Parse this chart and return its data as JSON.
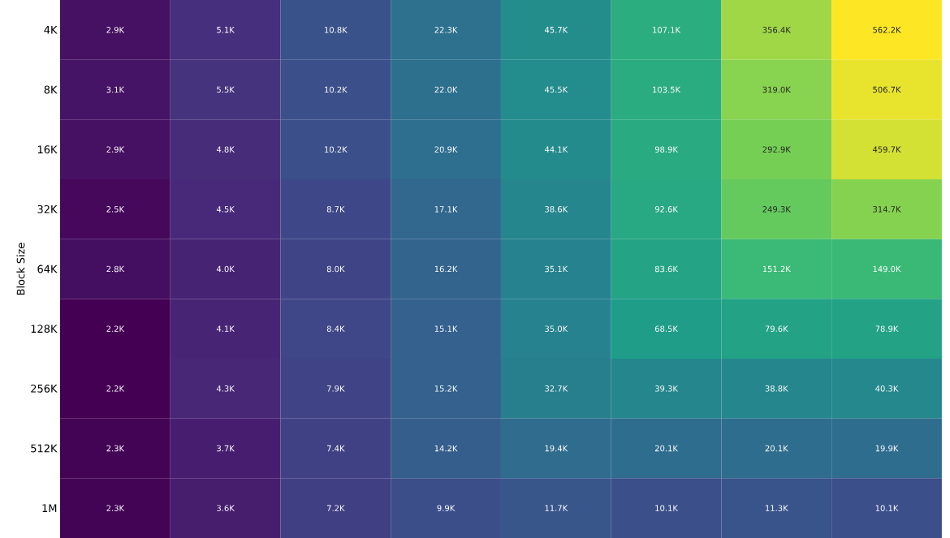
{
  "chart_data": {
    "type": "heatmap",
    "ylabel": "Block Size",
    "categories": [
      null,
      null,
      null,
      null,
      null,
      null,
      null,
      null
    ],
    "y_categories": [
      "4K",
      "8K",
      "16K",
      "32K",
      "64K",
      "128K",
      "256K",
      "512K",
      "1M"
    ],
    "cells": [
      [
        2900,
        5100,
        10800,
        22300,
        45700,
        107100,
        356400,
        562200
      ],
      [
        3100,
        5500,
        10200,
        22000,
        45500,
        103500,
        319000,
        506700
      ],
      [
        2900,
        4800,
        10200,
        20900,
        44100,
        98900,
        292900,
        459700
      ],
      [
        2500,
        4500,
        8700,
        17100,
        38600,
        92600,
        249300,
        314700
      ],
      [
        2800,
        4000,
        8000,
        16200,
        35100,
        83600,
        151200,
        149000
      ],
      [
        2200,
        4100,
        8400,
        15100,
        35000,
        68500,
        79600,
        78900
      ],
      [
        2200,
        4300,
        7900,
        15200,
        32700,
        39300,
        38800,
        40300
      ],
      [
        2300,
        3700,
        7400,
        14200,
        19400,
        20100,
        20100,
        19900
      ],
      [
        2300,
        3600,
        7200,
        9900,
        11700,
        10100,
        11300,
        10100
      ]
    ],
    "cell_labels": [
      [
        "2.9K",
        "5.1K",
        "10.8K",
        "22.3K",
        "45.7K",
        "107.1K",
        "356.4K",
        "562.2K"
      ],
      [
        "3.1K",
        "5.5K",
        "10.2K",
        "22.0K",
        "45.5K",
        "103.5K",
        "319.0K",
        "506.7K"
      ],
      [
        "2.9K",
        "4.8K",
        "10.2K",
        "20.9K",
        "44.1K",
        "98.9K",
        "292.9K",
        "459.7K"
      ],
      [
        "2.5K",
        "4.5K",
        "8.7K",
        "17.1K",
        "38.6K",
        "92.6K",
        "249.3K",
        "314.7K"
      ],
      [
        "2.8K",
        "4.0K",
        "8.0K",
        "16.2K",
        "35.1K",
        "83.6K",
        "151.2K",
        "149.0K"
      ],
      [
        "2.2K",
        "4.1K",
        "8.4K",
        "15.1K",
        "35.0K",
        "68.5K",
        "79.6K",
        "78.9K"
      ],
      [
        "2.2K",
        "4.3K",
        "7.9K",
        "15.2K",
        "32.7K",
        "39.3K",
        "38.8K",
        "40.3K"
      ],
      [
        "2.3K",
        "3.7K",
        "7.4K",
        "14.2K",
        "19.4K",
        "20.1K",
        "20.1K",
        "19.9K"
      ],
      [
        "2.3K",
        "3.6K",
        "7.2K",
        "9.9K",
        "11.7K",
        "10.1K",
        "11.3K",
        "10.1K"
      ]
    ],
    "tick_labels": "y"
  }
}
